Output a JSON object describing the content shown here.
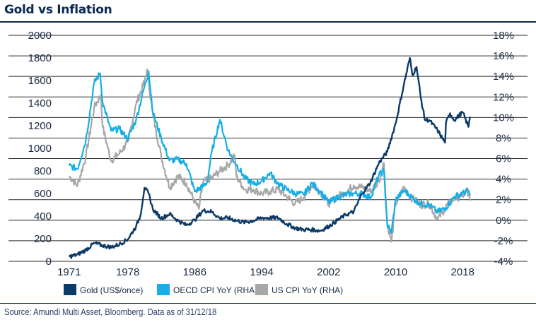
{
  "title": "Gold vs Inflation",
  "source": "Source: Amundi Multi Asset, Bloomberg. Data as of 31/12/18",
  "colors": {
    "gold": "#0c3a66",
    "oecd": "#15aee8",
    "us": "#a7a7a7",
    "grid": "#2a2a2a",
    "text": "#1a2a44"
  },
  "chart_data": {
    "type": "line",
    "title": "Gold vs Inflation",
    "xlabel": "",
    "x_ticks": [
      "1971",
      "1978",
      "1986",
      "1994",
      "2002",
      "2010",
      "2018"
    ],
    "xlim": [
      1969.5,
      2019.5
    ],
    "y_left": {
      "ticks": [
        "0",
        "200",
        "400",
        "600",
        "800",
        "1000",
        "1200",
        "1400",
        "1600",
        "1800",
        "2000"
      ],
      "ylim": [
        0,
        2000
      ]
    },
    "y_right": {
      "ticks": [
        "-4%",
        "-2%",
        "0%",
        "2%",
        "4%",
        "6%",
        "8%",
        "10%",
        "12%",
        "14%",
        "16%",
        "18%"
      ],
      "ylim": [
        -4,
        18
      ]
    },
    "grid": true,
    "legend_position": "bottom",
    "series": [
      {
        "name": "Gold (US$/once)",
        "axis": "left",
        "x": [
          1971,
          1972,
          1973,
          1974,
          1975,
          1976,
          1977,
          1978,
          1979,
          1979.5,
          1980,
          1980.5,
          1981,
          1982,
          1983,
          1984,
          1985,
          1986,
          1987,
          1988,
          1989,
          1990,
          1991,
          1992,
          1993,
          1994,
          1995,
          1996,
          1997,
          1998,
          1999,
          2000,
          2001,
          2002,
          2003,
          2004,
          2005,
          2006,
          2007,
          2008,
          2009,
          2010,
          2011,
          2011.7,
          2012,
          2012.5,
          2013,
          2013.5,
          2014,
          2015,
          2015.9,
          2016,
          2016.5,
          2017,
          2018,
          2018.7,
          2018.9
        ],
        "values": [
          40,
          60,
          100,
          160,
          140,
          125,
          150,
          195,
          310,
          400,
          650,
          600,
          460,
          380,
          420,
          360,
          320,
          365,
          450,
          440,
          380,
          385,
          360,
          345,
          360,
          385,
          385,
          385,
          330,
          295,
          280,
          280,
          270,
          310,
          360,
          410,
          440,
          600,
          700,
          870,
          970,
          1220,
          1570,
          1800,
          1650,
          1720,
          1450,
          1250,
          1250,
          1160,
          1050,
          1220,
          1310,
          1250,
          1320,
          1190,
          1280
        ]
      },
      {
        "name": "OECD CPI YoY (RHA)",
        "axis": "right",
        "x": [
          1971,
          1972,
          1973,
          1974,
          1974.7,
          1975,
          1976,
          1977,
          1978,
          1979,
          1980,
          1980.5,
          1981,
          1982,
          1983,
          1984,
          1985,
          1986,
          1987,
          1987.5,
          1988,
          1989,
          1990,
          1990.8,
          1991,
          1992,
          1993,
          1994,
          1995,
          1996,
          1997,
          1998,
          1999,
          2000,
          2001,
          2002,
          2003,
          2004,
          2005,
          2006,
          2007,
          2008,
          2008.6,
          2009,
          2009.5,
          2010,
          2011,
          2012,
          2013,
          2014,
          2015,
          2016,
          2017,
          2018,
          2018.7,
          2018.9
        ],
        "values": [
          5.3,
          5.0,
          7.8,
          13.4,
          14.3,
          11.5,
          8.7,
          8.9,
          7.9,
          9.8,
          13.0,
          14.5,
          10.5,
          8.0,
          5.8,
          5.9,
          5.5,
          2.8,
          3.3,
          3.7,
          6.5,
          9.8,
          6.8,
          5.6,
          5.4,
          4.1,
          3.5,
          3.8,
          4.6,
          3.5,
          3.0,
          2.6,
          2.5,
          3.6,
          2.8,
          1.7,
          2.2,
          2.5,
          2.6,
          2.6,
          2.2,
          4.4,
          4.8,
          -0.5,
          -1.2,
          2.0,
          2.9,
          2.2,
          1.6,
          1.5,
          0.8,
          1.2,
          2.3,
          2.6,
          2.9,
          2.4
        ]
      },
      {
        "name": "US CPI YoY (RHA)",
        "axis": "right",
        "x": [
          1971,
          1972,
          1973,
          1974,
          1974.8,
          1975,
          1976,
          1977,
          1978,
          1979,
          1980,
          1980.3,
          1981,
          1982,
          1983,
          1984,
          1985,
          1986,
          1986.5,
          1987,
          1988,
          1989,
          1990,
          1990.8,
          1991,
          1992,
          1993,
          1994,
          1995,
          1996,
          1997,
          1998,
          1999,
          2000,
          2001,
          2002,
          2003,
          2004,
          2005,
          2006,
          2007,
          2008,
          2008.6,
          2009,
          2009.5,
          2010,
          2011,
          2012,
          2013,
          2014,
          2015,
          2016,
          2017,
          2018,
          2018.5,
          2018.9
        ],
        "values": [
          4.3,
          3.4,
          6.2,
          11.0,
          12.2,
          9.1,
          5.8,
          6.5,
          7.6,
          11.3,
          13.5,
          14.7,
          10.3,
          6.2,
          3.2,
          4.3,
          3.6,
          1.8,
          1.1,
          3.7,
          4.1,
          4.8,
          5.4,
          6.3,
          4.2,
          3.0,
          3.0,
          2.6,
          2.8,
          3.0,
          2.3,
          1.6,
          2.2,
          3.4,
          2.8,
          1.6,
          2.3,
          2.7,
          3.4,
          3.2,
          2.8,
          3.8,
          5.6,
          -0.4,
          -2.1,
          1.6,
          3.2,
          2.1,
          1.5,
          1.6,
          0.1,
          1.3,
          2.1,
          2.4,
          2.9,
          1.9
        ]
      }
    ]
  }
}
